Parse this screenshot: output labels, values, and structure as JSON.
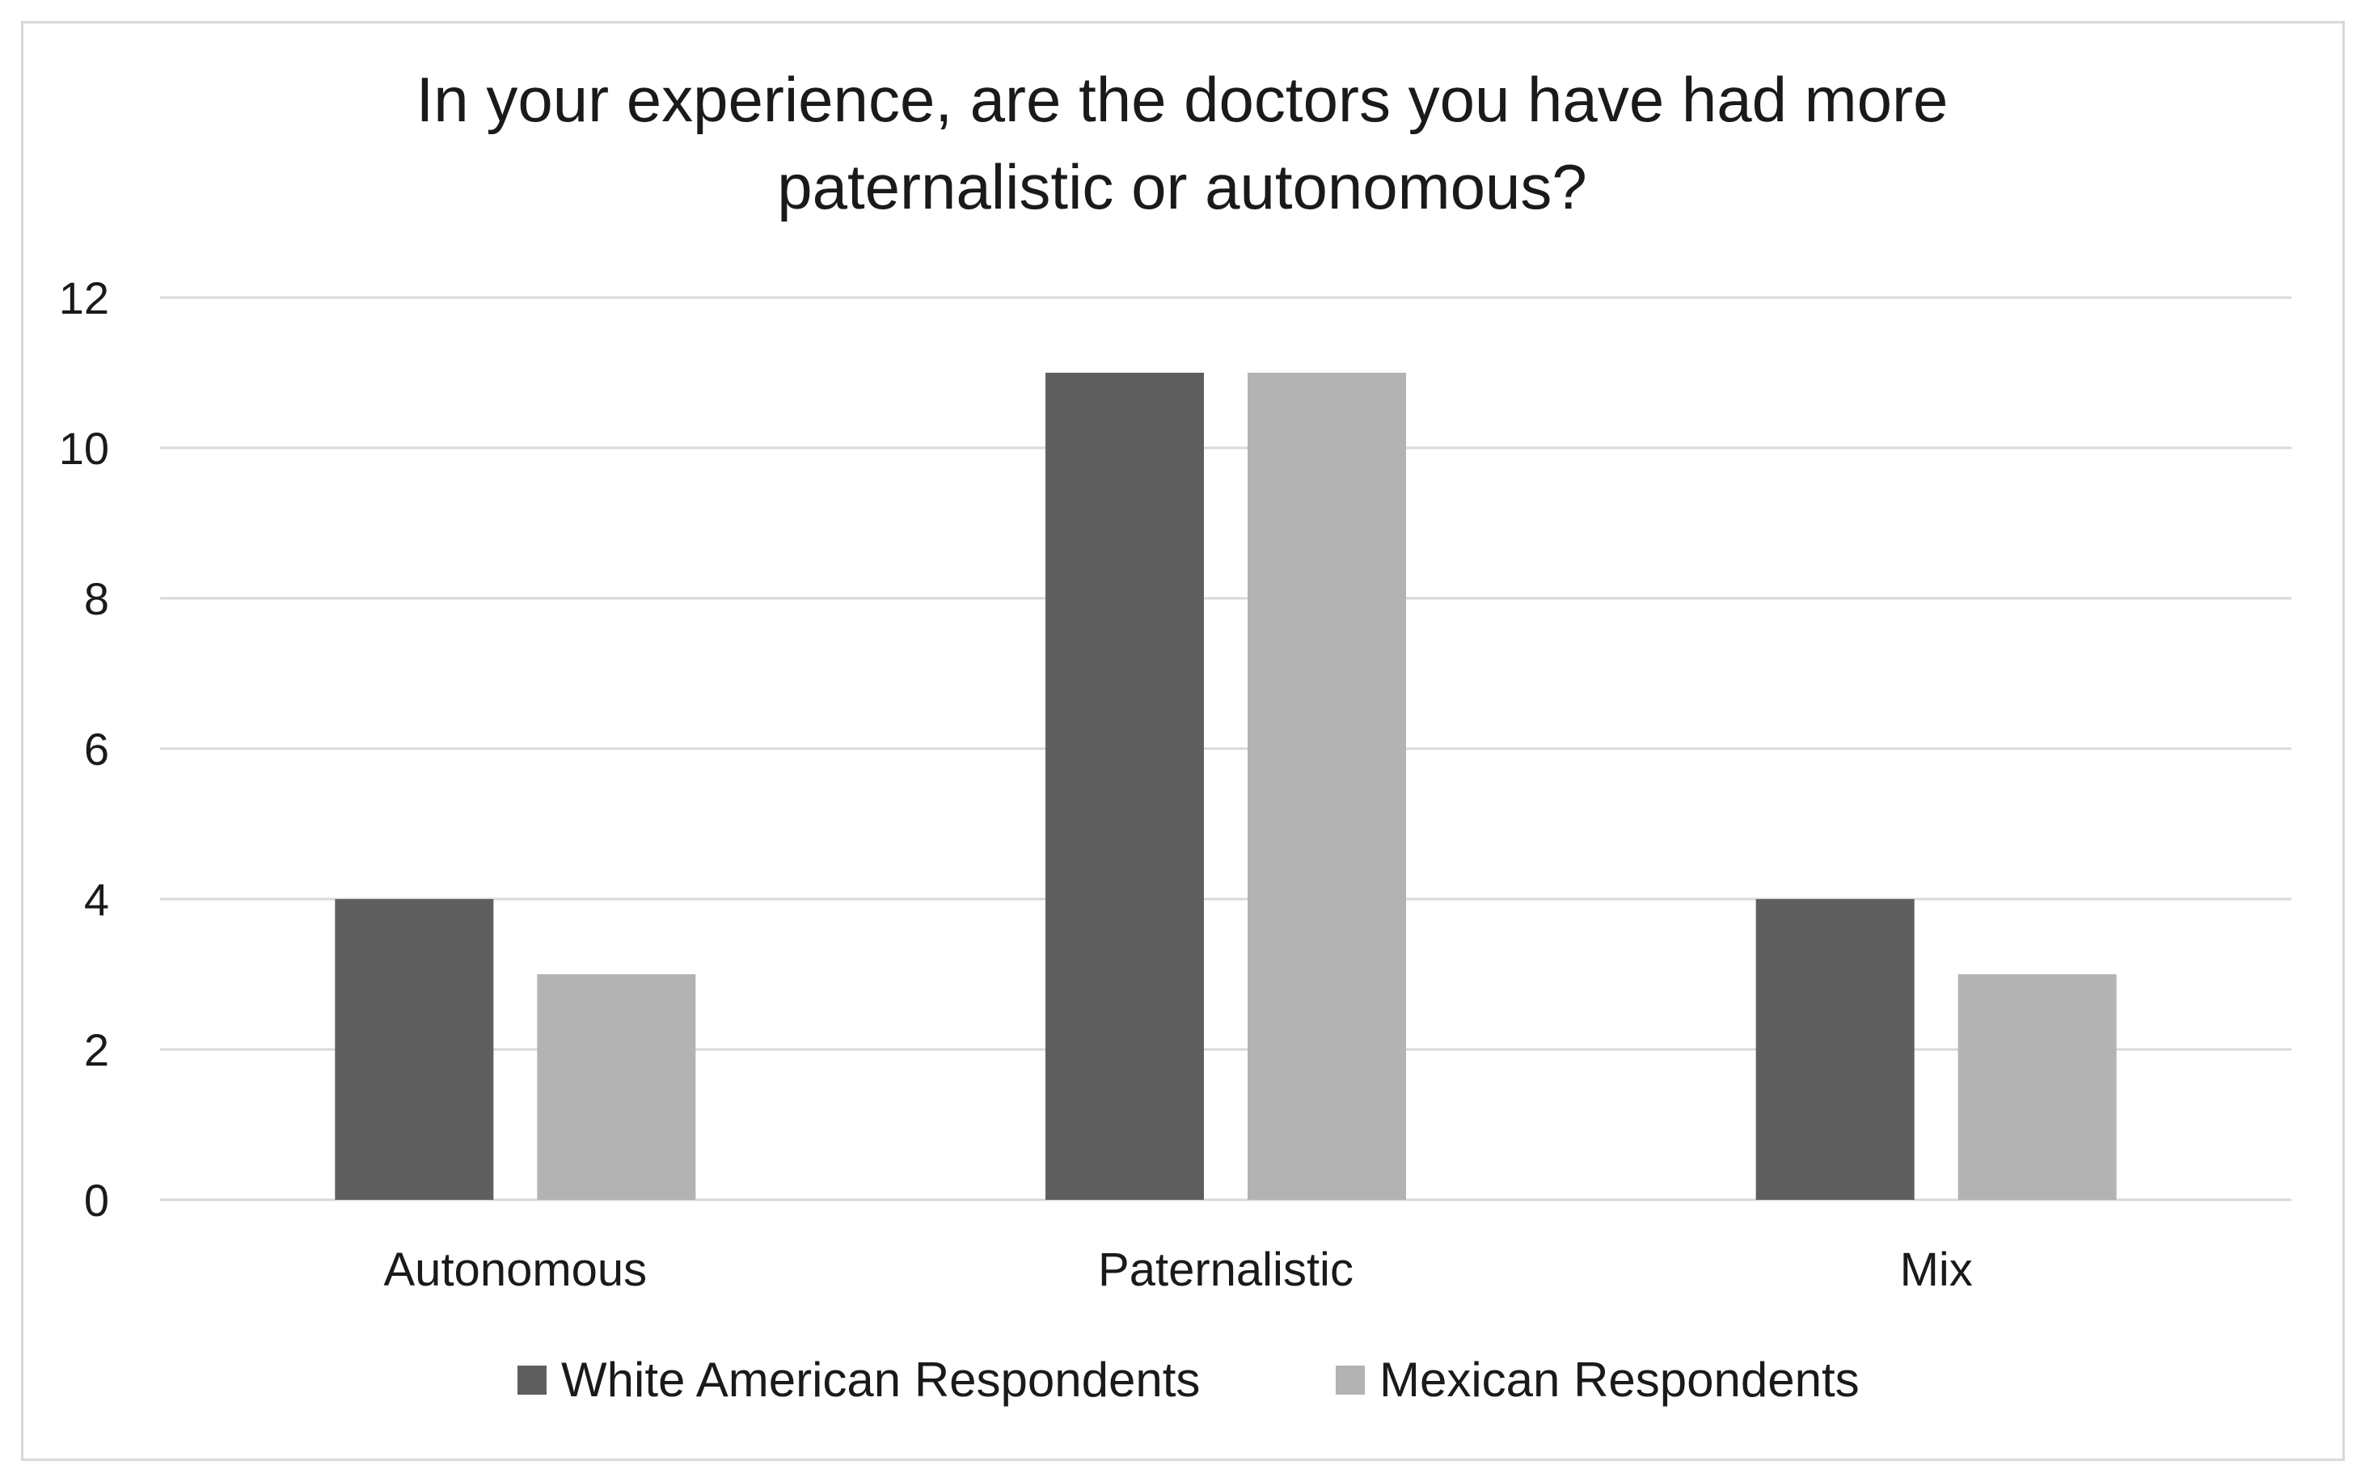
{
  "chart_data": {
    "type": "bar",
    "title_lines": [
      "In your experience, are the doctors you have had more",
      "paternalistic or autonomous?"
    ],
    "categories": [
      "Autonomous",
      "Paternalistic",
      "Mix"
    ],
    "series": [
      {
        "name": "White American Respondents",
        "values": [
          4,
          11,
          4
        ],
        "color": "#5f5f5f"
      },
      {
        "name": "Mexican Respondents",
        "values": [
          3,
          11,
          3
        ],
        "color": "#b3b3b3"
      }
    ],
    "ylim": [
      0,
      12
    ],
    "yticks": [
      0,
      2,
      4,
      6,
      8,
      10,
      12
    ],
    "grid": true,
    "gridColor": "#d9d9d9",
    "legend_position": "bottom"
  }
}
